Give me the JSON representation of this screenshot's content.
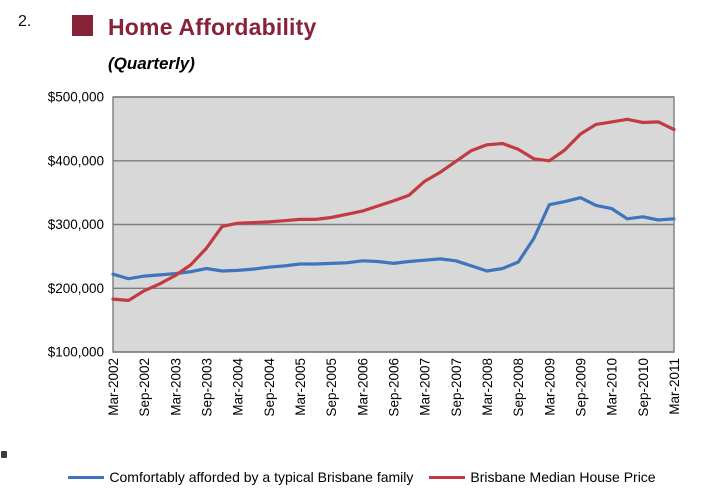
{
  "page": {
    "item_number": "2.",
    "title": "Home Affordability",
    "subtitle": "(Quarterly)"
  },
  "colors": {
    "title_text": "#872338",
    "bullet": "#872338",
    "plot_bg": "#D8D8D8",
    "gridline": "#7E7E7E",
    "plot_border": "#7E7E7E",
    "axis_text": "#000000"
  },
  "chart_data": {
    "type": "line",
    "title": "Home Affordability",
    "subtitle": "(Quarterly)",
    "xlabel": "",
    "ylabel": "",
    "grid": true,
    "legend_position": "bottom",
    "ylim": [
      100000,
      500000
    ],
    "y_ticks": [
      "$100,000",
      "$200,000",
      "$300,000",
      "$400,000",
      "$500,000"
    ],
    "y_tick_values": [
      100000,
      200000,
      300000,
      400000,
      500000
    ],
    "categories": [
      "Mar-2002",
      "Jun-2002",
      "Sep-2002",
      "Dec-2002",
      "Mar-2003",
      "Jun-2003",
      "Sep-2003",
      "Dec-2003",
      "Mar-2004",
      "Jun-2004",
      "Sep-2004",
      "Dec-2004",
      "Mar-2005",
      "Jun-2005",
      "Sep-2005",
      "Dec-2005",
      "Mar-2006",
      "Jun-2006",
      "Sep-2006",
      "Dec-2006",
      "Mar-2007",
      "Jun-2007",
      "Sep-2007",
      "Dec-2007",
      "Mar-2008",
      "Jun-2008",
      "Sep-2008",
      "Dec-2008",
      "Mar-2009",
      "Jun-2009",
      "Sep-2009",
      "Dec-2009",
      "Mar-2010",
      "Jun-2010",
      "Sep-2010",
      "Dec-2010",
      "Mar-2011"
    ],
    "x_tick_labels": [
      "Mar-2002",
      "Sep-2002",
      "Mar-2003",
      "Sep-2003",
      "Mar-2004",
      "Sep-2004",
      "Mar-2005",
      "Sep-2005",
      "Mar-2006",
      "Sep-2006",
      "Mar-2007",
      "Sep-2007",
      "Mar-2008",
      "Sep-2008",
      "Mar-2009",
      "Sep-2009",
      "Mar-2010",
      "Sep-2010",
      "Mar-2011"
    ],
    "x_tick_every": 2,
    "series": [
      {
        "name": "Comfortably afforded by a typical Brisbane family",
        "color": "#3E75BE",
        "values": [
          222000,
          215000,
          219000,
          221000,
          223000,
          226000,
          231000,
          227000,
          228000,
          230000,
          233000,
          235000,
          238000,
          238000,
          239000,
          240000,
          243000,
          242000,
          239000,
          242000,
          244000,
          246000,
          243000,
          235000,
          227000,
          231000,
          241000,
          278000,
          331000,
          336000,
          342000,
          330000,
          325000,
          309000,
          312000,
          307000,
          309000
        ]
      },
      {
        "name": "Brisbane Median House Price",
        "color": "#C23B42",
        "values": [
          183000,
          181000,
          196000,
          207000,
          220000,
          237000,
          263000,
          297000,
          302000,
          303000,
          304000,
          306000,
          308000,
          308000,
          311000,
          316000,
          321000,
          329000,
          337000,
          346000,
          368000,
          382000,
          399000,
          416000,
          425000,
          427000,
          418000,
          403000,
          400000,
          417000,
          442000,
          457000,
          461000,
          465000,
          460000,
          461000,
          449000
        ]
      }
    ]
  }
}
